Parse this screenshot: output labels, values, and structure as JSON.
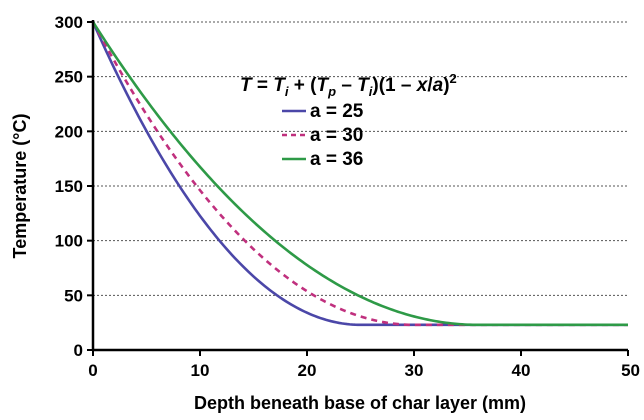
{
  "chart_data": {
    "type": "line",
    "xlabel": "Depth beneath base of char layer (mm)",
    "ylabel": "Temperature (°C)",
    "xlim": [
      0,
      50
    ],
    "ylim": [
      0,
      300
    ],
    "x_ticks": [
      "0",
      "10",
      "20",
      "30",
      "40",
      "50"
    ],
    "y_ticks": [
      "0",
      "50",
      "100",
      "150",
      "200",
      "250",
      "300"
    ],
    "grid": "horizontal-dotted",
    "legend_placement": "top-right",
    "equation": {
      "parts": [
        "T",
        " = ",
        "T",
        "i",
        " + (",
        "T",
        "p",
        " – ",
        "T",
        "i",
        ")(1 – ",
        "x",
        "/",
        "a",
        ")",
        "2"
      ]
    },
    "Ti": 23,
    "Tp": 300,
    "series": [
      {
        "name": "a = 25",
        "a": 25,
        "color": "#4b47a8",
        "style": "solid",
        "x": [
          0,
          2.5,
          5,
          7.5,
          10,
          12.5,
          15,
          17.5,
          20,
          22.5,
          25,
          30,
          35,
          40,
          45,
          50
        ],
        "y": [
          300,
          247,
          200,
          159,
          123,
          92,
          67,
          48,
          34,
          26,
          23,
          23,
          23,
          23,
          23,
          23
        ]
      },
      {
        "name": "a = 30",
        "a": 30,
        "color": "#c0307e",
        "style": "dashed",
        "x": [
          0,
          3,
          6,
          9,
          12,
          15,
          18,
          21,
          24,
          27,
          30,
          35,
          40,
          45,
          50
        ],
        "y": [
          300,
          247,
          200,
          159,
          123,
          92,
          67,
          48,
          34,
          26,
          23,
          23,
          23,
          23,
          23
        ]
      },
      {
        "name": "a = 36",
        "a": 36,
        "color": "#2e9a47",
        "style": "solid",
        "x": [
          0,
          3.6,
          7.2,
          10.8,
          14.4,
          18,
          21.6,
          25.2,
          28.8,
          32.4,
          36,
          40,
          45,
          50
        ],
        "y": [
          300,
          247,
          200,
          159,
          123,
          92,
          67,
          48,
          34,
          26,
          23,
          23,
          23,
          23
        ]
      }
    ]
  }
}
